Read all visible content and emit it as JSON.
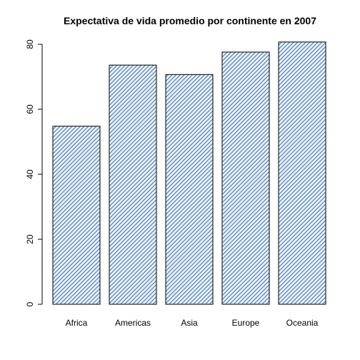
{
  "chart_data": {
    "type": "bar",
    "title": "Expectativa de vida promedio por continente en 2007",
    "xlabel": "",
    "ylabel": "",
    "categories": [
      "Africa",
      "Americas",
      "Asia",
      "Europe",
      "Oceania"
    ],
    "values": [
      54.8,
      73.6,
      70.7,
      77.6,
      80.7
    ],
    "ylim": [
      0,
      80
    ],
    "yticks": [
      0,
      20,
      40,
      60,
      80
    ],
    "grid": false,
    "legend": "none",
    "colors": {
      "bar_fill": "#5b8fc7",
      "bar_hatch_light": "#e8f0f8",
      "bar_hatch_dark": "#3a6fb0",
      "bar_stroke": "#000000"
    }
  }
}
